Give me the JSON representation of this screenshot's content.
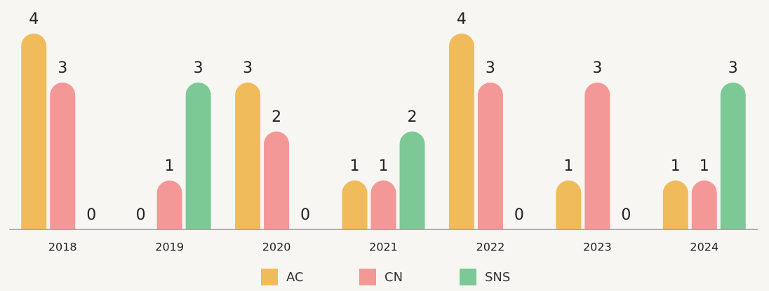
{
  "chart_data": {
    "type": "bar",
    "categories": [
      "2018",
      "2019",
      "2020",
      "2021",
      "2022",
      "2023",
      "2024"
    ],
    "series": [
      {
        "name": "AC",
        "color": "#f0bb5a",
        "values": [
          4,
          0,
          3,
          1,
          4,
          1,
          1
        ]
      },
      {
        "name": "CN",
        "color": "#f49797",
        "values": [
          3,
          1,
          2,
          1,
          3,
          3,
          1
        ]
      },
      {
        "name": "SNS",
        "color": "#7cc996",
        "values": [
          0,
          3,
          0,
          2,
          0,
          0,
          3
        ]
      }
    ],
    "ylim": [
      0,
      4
    ],
    "legend": "bottom"
  }
}
